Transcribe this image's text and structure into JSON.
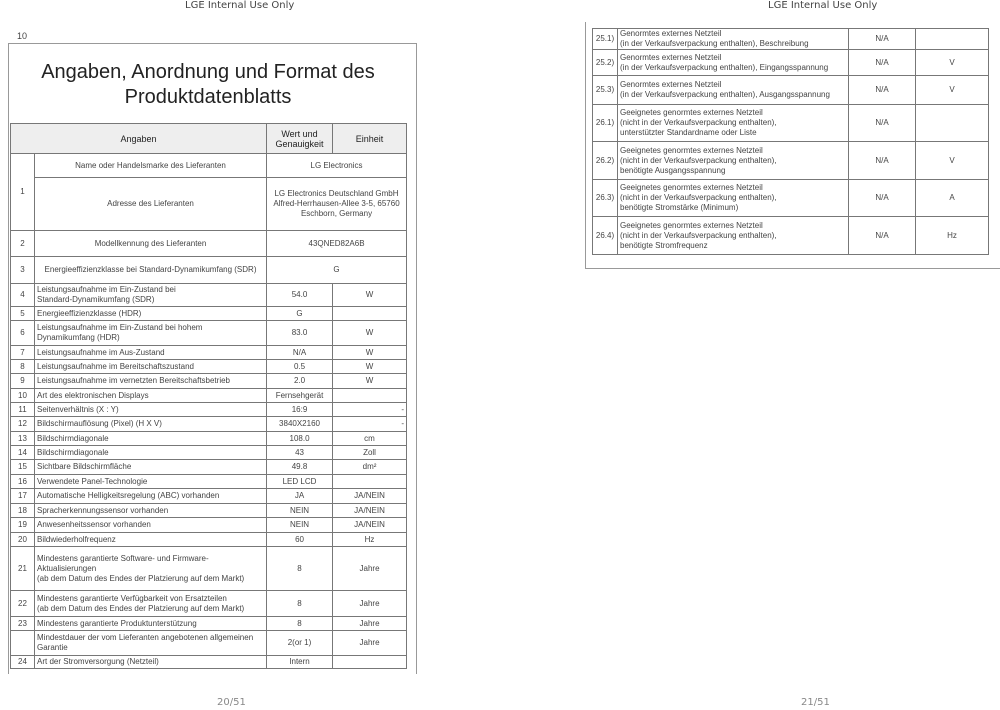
{
  "header_text": "LGE Internal Use Only",
  "left_page": {
    "page_label": "10",
    "title": "Angaben, Anordnung und Format des\nProduktdatenblatts",
    "columns": {
      "angaben": "Angaben",
      "wert": "Wert und\nGenauigkeit",
      "einheit": "Einheit"
    },
    "rows": [
      {
        "num": "1",
        "desc": "Name oder Handelsmarke des Lieferanten",
        "value": "LG Electronics",
        "unit": null
      },
      {
        "num": "",
        "desc": "Adresse des Lieferanten",
        "value": "LG Electronics Deutschland GmbH\nAlfred-Herrhausen-Allee 3-5, 65760\nEschborn, Germany",
        "unit": null
      },
      {
        "num": "2",
        "desc": "Modellkennung des Lieferanten",
        "value": "43QNED82A6B",
        "unit": null
      },
      {
        "num": "3",
        "desc": "Energieeffizienzklasse bei Standard-Dynamikumfang (SDR)",
        "value": "G",
        "unit": null
      },
      {
        "num": "4",
        "desc": "Leistungsaufnahme im Ein-Zustand bei\nStandard-Dynamikumfang (SDR)",
        "value": "54.0",
        "unit": "W"
      },
      {
        "num": "5",
        "desc": "Energieeffizienzklasse (HDR)",
        "value": "G",
        "unit": ""
      },
      {
        "num": "6",
        "desc": "Leistungsaufnahme im Ein-Zustand bei hohem\nDynamikumfang (HDR)",
        "value": "83.0",
        "unit": "W"
      },
      {
        "num": "7",
        "desc": "Leistungsaufnahme im Aus-Zustand",
        "value": "N/A",
        "unit": "W"
      },
      {
        "num": "8",
        "desc": "Leistungsaufnahme im Bereitschaftszustand",
        "value": "0.5",
        "unit": "W"
      },
      {
        "num": "9",
        "desc": "Leistungsaufnahme im vernetzten Bereitschaftsbetrieb",
        "value": "2.0",
        "unit": "W"
      },
      {
        "num": "10",
        "desc": "Art des elektronischen Displays",
        "value": "Fernsehgerät",
        "unit": ""
      },
      {
        "num": "11",
        "desc": "Seitenverhältnis (X : Y)",
        "value": "16:9",
        "unit": "-"
      },
      {
        "num": "12",
        "desc": "Bildschirmauflösung (Pixel) (H X V)",
        "value": "3840X2160",
        "unit": "-"
      },
      {
        "num": "13",
        "desc": "Bildschirmdiagonale",
        "value": "108.0",
        "unit": "cm"
      },
      {
        "num": "14",
        "desc": "Bildschirmdiagonale",
        "value": "43",
        "unit": "Zoll"
      },
      {
        "num": "15",
        "desc": "Sichtbare Bildschirmfläche",
        "value": "49.8",
        "unit": "dm²"
      },
      {
        "num": "16",
        "desc": "Verwendete Panel-Technologie",
        "value": "LED LCD",
        "unit": ""
      },
      {
        "num": "17",
        "desc": "Automatische Helligkeitsregelung (ABC) vorhanden",
        "value": "JA",
        "unit": "JA/NEIN"
      },
      {
        "num": "18",
        "desc": "Spracherkennungssensor vorhanden",
        "value": "NEIN",
        "unit": "JA/NEIN"
      },
      {
        "num": "19",
        "desc": "Anwesenheitssensor vorhanden",
        "value": "NEIN",
        "unit": "JA/NEIN"
      },
      {
        "num": "20",
        "desc": "Bildwiederholfrequenz",
        "value": "60",
        "unit": "Hz"
      },
      {
        "num": "21",
        "desc": "Mindestens garantierte Software- und Firmware-Aktualisierungen\n(ab dem Datum des Endes der Platzierung auf dem Markt)",
        "value": "8",
        "unit": "Jahre"
      },
      {
        "num": "22",
        "desc": "Mindestens garantierte Verfügbarkeit von Ersatzteilen\n(ab dem Datum des Endes der Platzierung auf dem Markt)",
        "value": "8",
        "unit": "Jahre"
      },
      {
        "num": "23",
        "desc": "Mindestens garantierte Produktunterstützung",
        "value": "8",
        "unit": "Jahre"
      },
      {
        "num": "",
        "desc": "Mindestdauer der vom Lieferanten angebotenen allgemeinen\nGarantie",
        "value": "2(or 1)",
        "unit": "Jahre"
      },
      {
        "num": "24",
        "desc": "Art der Stromversorgung (Netzteil)",
        "value": "Intern",
        "unit": ""
      }
    ],
    "footer": "20/51"
  },
  "right_page": {
    "rows": [
      {
        "num": "25.1)",
        "desc": "Genormtes externes Netzteil\n(in der Verkaufsverpackung enthalten), Beschreibung",
        "value": "N/A",
        "unit": ""
      },
      {
        "num": "25.2)",
        "desc": "Genormtes externes Netzteil\n(in der Verkaufsverpackung enthalten), Eingangsspannung",
        "value": "N/A",
        "unit": "V"
      },
      {
        "num": "25.3)",
        "desc": "Genormtes externes Netzteil\n(in der Verkaufsverpackung enthalten), Ausgangsspannung",
        "value": "N/A",
        "unit": "V"
      },
      {
        "num": "26.1)",
        "desc": "Geeignetes genormtes externes Netzteil\n(nicht in der Verkaufsverpackung enthalten),\nunterstützter Standardname oder Liste",
        "value": "N/A",
        "unit": ""
      },
      {
        "num": "26.2)",
        "desc": "Geeignetes genormtes externes Netzteil\n(nicht in der Verkaufsverpackung enthalten),\nbenötigte Ausgangsspannung",
        "value": "N/A",
        "unit": "V"
      },
      {
        "num": "26.3)",
        "desc": "Geeignetes genormtes externes Netzteil\n(nicht in der Verkaufsverpackung enthalten),\nbenötigte Stromstärke (Minimum)",
        "value": "N/A",
        "unit": "A"
      },
      {
        "num": "26.4)",
        "desc": "Geeignetes genormtes externes Netzteil\n(nicht in der Verkaufsverpackung enthalten),\n benötigte Stromfrequenz",
        "value": "N/A",
        "unit": "Hz"
      }
    ],
    "footer": "21/51"
  }
}
